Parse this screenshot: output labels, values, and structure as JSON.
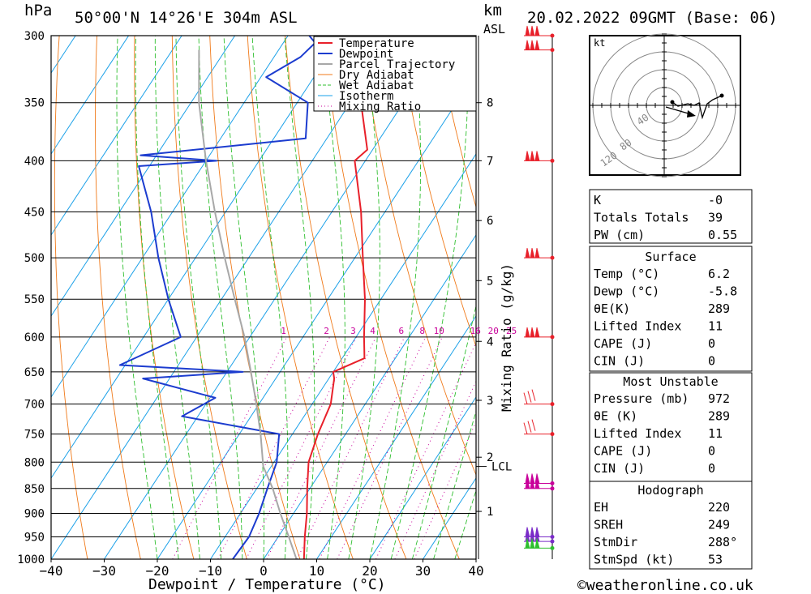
{
  "header": {
    "location": "50°00'N 14°26'E 304m ASL",
    "date": "20.02.2022 09GMT (Base: 06)",
    "hpa_label": "hPa",
    "km_label": "km",
    "asl_label": "ASL"
  },
  "footer": {
    "credit": "©weatheronline.co.uk"
  },
  "chart_data": {
    "type": "line",
    "subtype": "skew-T log-p sounding",
    "xlabel": "Dewpoint / Temperature (°C)",
    "ylabel": "hPa",
    "right_axis_label": "Mixing Ratio (g/kg)",
    "xlim": [
      -40,
      40
    ],
    "ylim": [
      1000,
      300
    ],
    "x_ticks": [
      "-40",
      "-30",
      "-20",
      "-10",
      "0",
      "10",
      "20",
      "30",
      "40"
    ],
    "pressure_ticks": [
      "300",
      "350",
      "400",
      "450",
      "500",
      "550",
      "600",
      "650",
      "700",
      "750",
      "800",
      "850",
      "900",
      "950",
      "1000"
    ],
    "height_ticks": [
      {
        "label": "8",
        "p": 350
      },
      {
        "label": "7",
        "p": 400
      },
      {
        "label": "6",
        "p": 459
      },
      {
        "label": "5",
        "p": 527
      },
      {
        "label": "4",
        "p": 606
      },
      {
        "label": "3",
        "p": 694
      },
      {
        "label": "2",
        "p": 791
      },
      {
        "label": "1",
        "p": 896
      }
    ],
    "lcl_label": "LCL",
    "lcl_pressure": 808,
    "mixing_ratio_labels": [
      "1",
      "2",
      "3",
      "4",
      "6",
      "8",
      "10",
      "16",
      "20",
      "25"
    ],
    "legend": [
      "Temperature",
      "Dewpoint",
      "Parcel Trajectory",
      "Dry Adiabat",
      "Wet Adiabat",
      "Isotherm",
      "Mixing Ratio"
    ],
    "colors": {
      "temperature": "#e8202a",
      "dewpoint": "#1c3ccf",
      "parcel": "#a8a8a8",
      "dry_adiabat": "#f07a1a",
      "wet_adiabat": "#2fbf2f",
      "isotherm": "#1aa0e8",
      "mixing_ratio": "#c8009a"
    },
    "series": [
      {
        "name": "Temperature",
        "points": [
          [
            1000,
            7.6
          ],
          [
            950,
            5.0
          ],
          [
            900,
            2.5
          ],
          [
            850,
            -0.5
          ],
          [
            800,
            -3.5
          ],
          [
            750,
            -5.2
          ],
          [
            700,
            -6.5
          ],
          [
            660,
            -9.0
          ],
          [
            650,
            -10.0
          ],
          [
            630,
            -5.8
          ],
          [
            600,
            -8.5
          ],
          [
            550,
            -13.0
          ],
          [
            500,
            -18.5
          ],
          [
            450,
            -24.5
          ],
          [
            400,
            -32.0
          ],
          [
            390,
            -31.0
          ],
          [
            350,
            -38.0
          ],
          [
            300,
            -46.0
          ]
        ]
      },
      {
        "name": "Dewpoint",
        "points": [
          [
            1000,
            -5.8
          ],
          [
            950,
            -5.5
          ],
          [
            900,
            -6.5
          ],
          [
            850,
            -8.0
          ],
          [
            800,
            -9.5
          ],
          [
            750,
            -12.5
          ],
          [
            720,
            -33.0
          ],
          [
            690,
            -29.0
          ],
          [
            660,
            -45.0
          ],
          [
            650,
            -27.0
          ],
          [
            640,
            -51.0
          ],
          [
            600,
            -43.0
          ],
          [
            550,
            -50.0
          ],
          [
            500,
            -57.0
          ],
          [
            450,
            -64.0
          ],
          [
            405,
            -72.0
          ],
          [
            400,
            -58.0
          ],
          [
            395,
            -73.0
          ],
          [
            380,
            -44.0
          ],
          [
            350,
            -48.0
          ],
          [
            330,
            -59.0
          ],
          [
            315,
            -55.0
          ],
          [
            305,
            -54.0
          ],
          [
            300,
            -56.0
          ]
        ]
      },
      {
        "name": "Parcel Trajectory",
        "points": [
          [
            1000,
            6.2
          ],
          [
            950,
            2.0
          ],
          [
            900,
            -2.5
          ],
          [
            850,
            -7.0
          ],
          [
            808,
            -11.5
          ],
          [
            750,
            -16.0
          ],
          [
            700,
            -20.5
          ],
          [
            650,
            -25.5
          ],
          [
            600,
            -31.0
          ],
          [
            550,
            -37.5
          ],
          [
            500,
            -44.5
          ],
          [
            450,
            -52.0
          ],
          [
            400,
            -60.0
          ],
          [
            350,
            -68.5
          ],
          [
            310,
            -75.0
          ]
        ]
      }
    ],
    "wind_pressures": [
      300,
      310,
      400,
      500,
      600,
      700,
      750,
      840,
      850,
      950,
      960,
      975
    ]
  },
  "indices": {
    "general": [
      {
        "label": "K",
        "value": "-0"
      },
      {
        "label": "Totals Totals",
        "value": "39"
      },
      {
        "label": "PW (cm)",
        "value": "0.55"
      }
    ],
    "surface_title": "Surface",
    "surface": [
      {
        "label": "Temp (°C)",
        "value": "6.2"
      },
      {
        "label": "Dewp (°C)",
        "value": "-5.8"
      },
      {
        "label": "θE(K)",
        "value": "289"
      },
      {
        "label": "Lifted Index",
        "value": "11"
      },
      {
        "label": "CAPE (J)",
        "value": "0"
      },
      {
        "label": "CIN (J)",
        "value": "0"
      }
    ],
    "mu_title": "Most Unstable",
    "mu": [
      {
        "label": "Pressure (mb)",
        "value": "972"
      },
      {
        "label": "θE (K)",
        "value": "289"
      },
      {
        "label": "Lifted Index",
        "value": "11"
      },
      {
        "label": "CAPE (J)",
        "value": "0"
      },
      {
        "label": "CIN (J)",
        "value": "0"
      }
    ],
    "hodo_title": "Hodograph",
    "hodo": [
      {
        "label": "EH",
        "value": "220"
      },
      {
        "label": "SREH",
        "value": "249"
      },
      {
        "label": "StmDir",
        "value": "288°"
      },
      {
        "label": "StmSpd (kt)",
        "value": "53"
      }
    ]
  },
  "hodograph": {
    "unit_label": "kt",
    "ring_labels": [
      "40",
      "80",
      "120"
    ]
  }
}
